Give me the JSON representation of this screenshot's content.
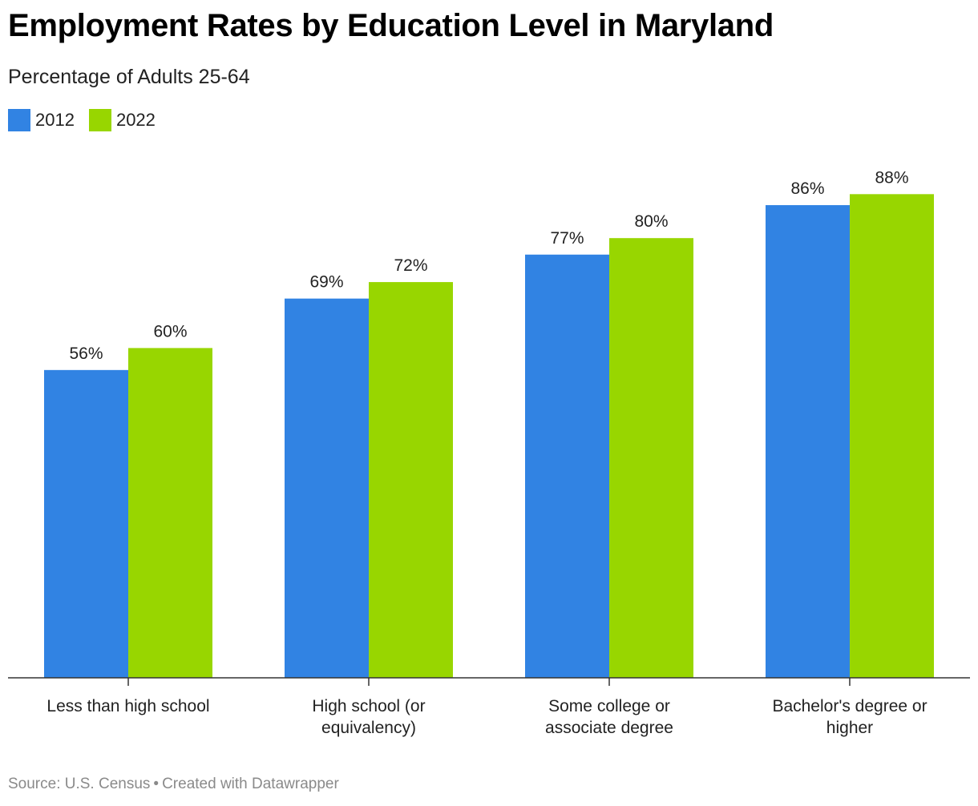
{
  "title": "Employment Rates by Education Level in Maryland",
  "subtitle": "Percentage of Adults 25-64",
  "footer": {
    "source": "Source: U.S. Census",
    "separator": "•",
    "credit": "Created with Datawrapper"
  },
  "colors": {
    "series_2012": "#3183e3",
    "series_2022": "#98d600"
  },
  "chart_data": {
    "type": "bar",
    "title": "Employment Rates by Education Level in Maryland",
    "subtitle": "Percentage of Adults 25-64",
    "categories": [
      [
        "Less than high school"
      ],
      [
        "High school (or",
        "equivalency)"
      ],
      [
        "Some college or",
        "associate degree"
      ],
      [
        "Bachelor's degree or",
        "higher"
      ]
    ],
    "series": [
      {
        "name": "2012",
        "values": [
          56,
          69,
          77,
          86
        ],
        "labels": [
          "56%",
          "69%",
          "77%",
          "86%"
        ]
      },
      {
        "name": "2022",
        "values": [
          60,
          72,
          80,
          88
        ],
        "labels": [
          "60%",
          "72%",
          "80%",
          "88%"
        ]
      }
    ],
    "ylim": [
      0,
      100
    ],
    "grid": false,
    "legend_position": "top-left"
  }
}
